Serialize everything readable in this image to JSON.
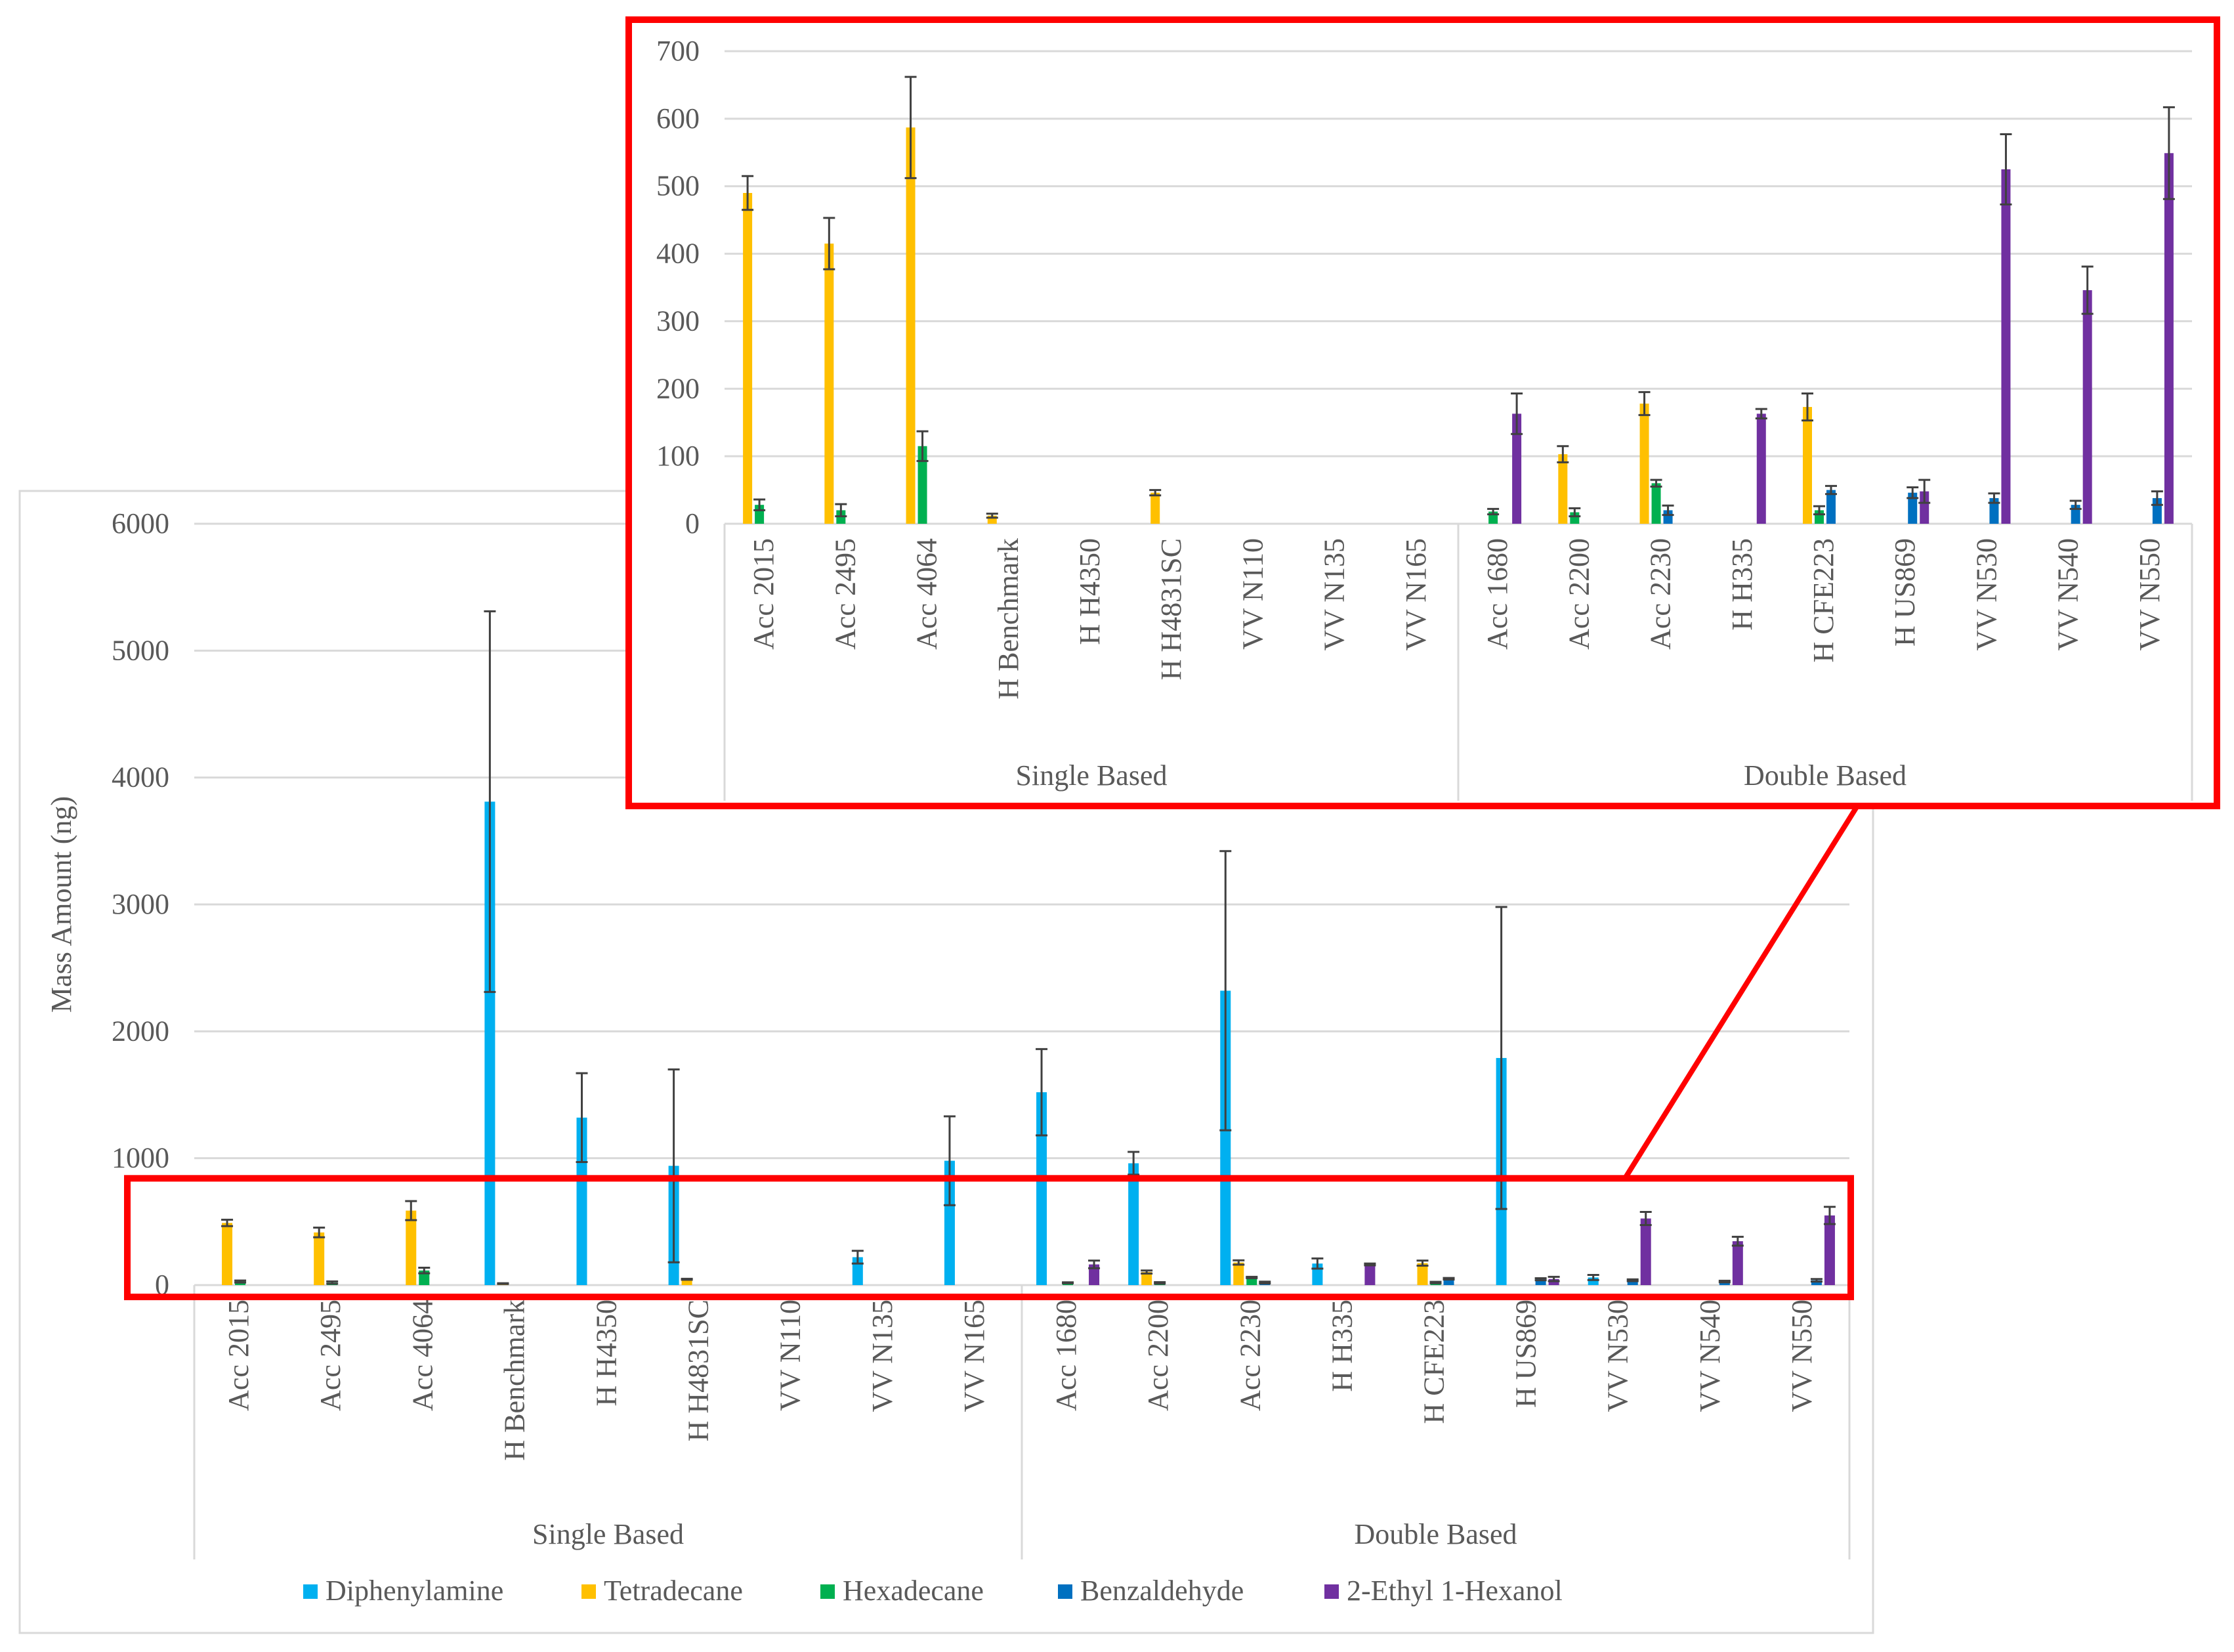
{
  "colors": {
    "series": [
      "#00B0F0",
      "#FFC000",
      "#00B050",
      "#0070C0",
      "#7030A0"
    ],
    "zoom_frame": "#FF0000",
    "grid": "#D9D9D9",
    "error_bar": "#404040",
    "text": "#595959"
  },
  "chart_data": [
    {
      "type": "bar",
      "title": "",
      "ylabel": "Mass Amount  (ng)",
      "xlabel": "",
      "ylim": [
        0,
        6000
      ],
      "yticks": [
        0,
        1000,
        2000,
        3000,
        4000,
        5000,
        6000
      ],
      "grid": true,
      "legend_position": "bottom",
      "groups": [
        {
          "label": "Single Based",
          "count": 9
        },
        {
          "label": "Double Based",
          "count": 9
        }
      ],
      "categories": [
        "Acc 2015",
        "Acc 2495",
        "Acc 4064",
        "H Benchmark",
        "H H4350",
        "H H4831SC",
        "VV N110",
        "VV N135",
        "VV N165",
        "Acc 1680",
        "Acc 2200",
        "Acc 2230",
        "H H335",
        "H CFE223",
        "H US869",
        "VV N530",
        "VV N540",
        "VV N550"
      ],
      "series": [
        {
          "name": "Diphenylamine",
          "values": [
            0,
            0,
            0,
            3810,
            1320,
            940,
            0,
            220,
            980,
            1520,
            960,
            2320,
            170,
            0,
            1790,
            60,
            0,
            0
          ],
          "errors": [
            0,
            0,
            0,
            1500,
            350,
            760,
            0,
            50,
            350,
            340,
            90,
            1100,
            40,
            0,
            1190,
            20,
            0,
            0
          ]
        },
        {
          "name": "Tetradecane",
          "values": [
            490,
            415,
            587,
            12,
            0,
            46,
            0,
            0,
            0,
            0,
            103,
            178,
            0,
            173,
            0,
            0,
            0,
            0
          ],
          "errors": [
            25,
            38,
            75,
            3,
            0,
            4,
            0,
            0,
            0,
            0,
            12,
            17,
            0,
            20,
            0,
            0,
            0,
            0
          ]
        },
        {
          "name": "Hexadecane",
          "values": [
            28,
            20,
            115,
            0,
            0,
            0,
            0,
            0,
            0,
            18,
            17,
            60,
            0,
            20,
            0,
            0,
            0,
            0
          ],
          "errors": [
            8,
            9,
            22,
            0,
            0,
            0,
            0,
            0,
            0,
            4,
            6,
            5,
            0,
            6,
            0,
            0,
            0,
            0
          ]
        },
        {
          "name": "Benzaldehyde",
          "values": [
            0,
            0,
            0,
            0,
            0,
            0,
            0,
            0,
            0,
            0,
            0,
            20,
            0,
            50,
            46,
            38,
            28,
            38
          ],
          "errors": [
            0,
            0,
            0,
            0,
            0,
            0,
            0,
            0,
            0,
            0,
            0,
            7,
            0,
            6,
            8,
            7,
            6,
            10
          ]
        },
        {
          "name": "2-Ethyl 1-Hexanol",
          "values": [
            0,
            0,
            0,
            0,
            0,
            0,
            0,
            0,
            0,
            163,
            0,
            0,
            163,
            0,
            48,
            525,
            346,
            549
          ],
          "errors": [
            0,
            0,
            0,
            0,
            0,
            0,
            0,
            0,
            0,
            30,
            0,
            0,
            7,
            0,
            17,
            52,
            35,
            68
          ]
        }
      ]
    },
    {
      "type": "bar",
      "title": "",
      "ylabel": "",
      "xlabel": "",
      "ylim": [
        0,
        700
      ],
      "yticks": [
        0,
        100,
        200,
        300,
        400,
        500,
        600,
        700
      ],
      "grid": true,
      "groups": [
        {
          "label": "Single Based",
          "count": 9
        },
        {
          "label": "Double Based",
          "count": 9
        }
      ],
      "categories": [
        "Acc 2015",
        "Acc 2495",
        "Acc 4064",
        "H Benchmark",
        "H H4350",
        "H H4831SC",
        "VV N110",
        "VV N135",
        "VV N165",
        "Acc 1680",
        "Acc 2200",
        "Acc 2230",
        "H H335",
        "H CFE223",
        "H US869",
        "VV N530",
        "VV N540",
        "VV N550"
      ],
      "series": [
        {
          "name": "Tetradecane",
          "values": [
            490,
            415,
            587,
            12,
            0,
            46,
            0,
            0,
            0,
            0,
            103,
            178,
            0,
            173,
            0,
            0,
            0,
            0
          ],
          "errors": [
            25,
            38,
            75,
            3,
            0,
            4,
            0,
            0,
            0,
            0,
            12,
            17,
            0,
            20,
            0,
            0,
            0,
            0
          ]
        },
        {
          "name": "Hexadecane",
          "values": [
            28,
            20,
            115,
            0,
            0,
            0,
            0,
            0,
            0,
            18,
            17,
            60,
            0,
            20,
            0,
            0,
            0,
            0
          ],
          "errors": [
            8,
            9,
            22,
            0,
            0,
            0,
            0,
            0,
            0,
            4,
            6,
            5,
            0,
            6,
            0,
            0,
            0,
            0
          ]
        },
        {
          "name": "Benzaldehyde",
          "values": [
            0,
            0,
            0,
            0,
            0,
            0,
            0,
            0,
            0,
            0,
            0,
            20,
            0,
            50,
            46,
            38,
            28,
            38
          ],
          "errors": [
            0,
            0,
            0,
            0,
            0,
            0,
            0,
            0,
            0,
            0,
            0,
            7,
            0,
            6,
            8,
            7,
            6,
            10
          ]
        },
        {
          "name": "2-Ethyl 1-Hexanol",
          "values": [
            0,
            0,
            0,
            0,
            0,
            0,
            0,
            0,
            0,
            163,
            0,
            0,
            163,
            0,
            48,
            525,
            346,
            549
          ],
          "errors": [
            0,
            0,
            0,
            0,
            0,
            0,
            0,
            0,
            0,
            30,
            0,
            0,
            7,
            0,
            17,
            52,
            35,
            68
          ]
        }
      ]
    }
  ],
  "legend": [
    "Diphenylamine",
    "Tetradecane",
    "Hexadecane",
    "Benzaldehyde",
    "2-Ethyl 1-Hexanol"
  ]
}
